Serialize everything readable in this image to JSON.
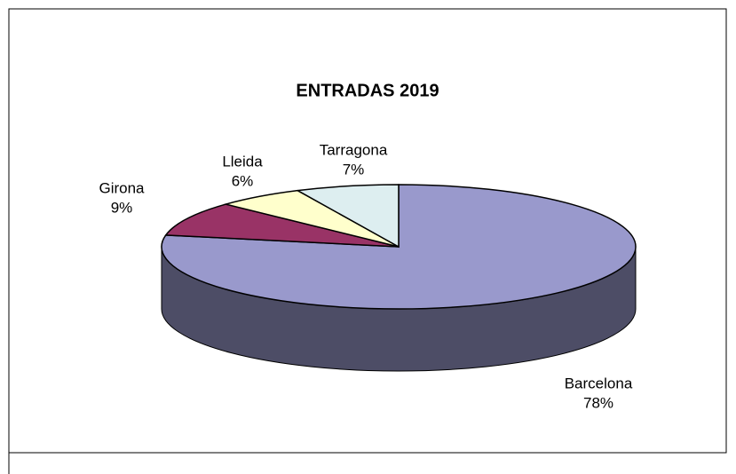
{
  "chart_data": {
    "type": "pie",
    "title": "ENTRADAS 2019",
    "categories": [
      "Barcelona",
      "Girona",
      "Lleida",
      "Tarragona"
    ],
    "values": [
      78,
      9,
      6,
      7
    ],
    "value_labels": [
      "78%",
      "9%",
      "6%",
      "7%"
    ],
    "colors": [
      "#9999cc",
      "#993366",
      "#ffffcc",
      "#ddeef0"
    ]
  }
}
